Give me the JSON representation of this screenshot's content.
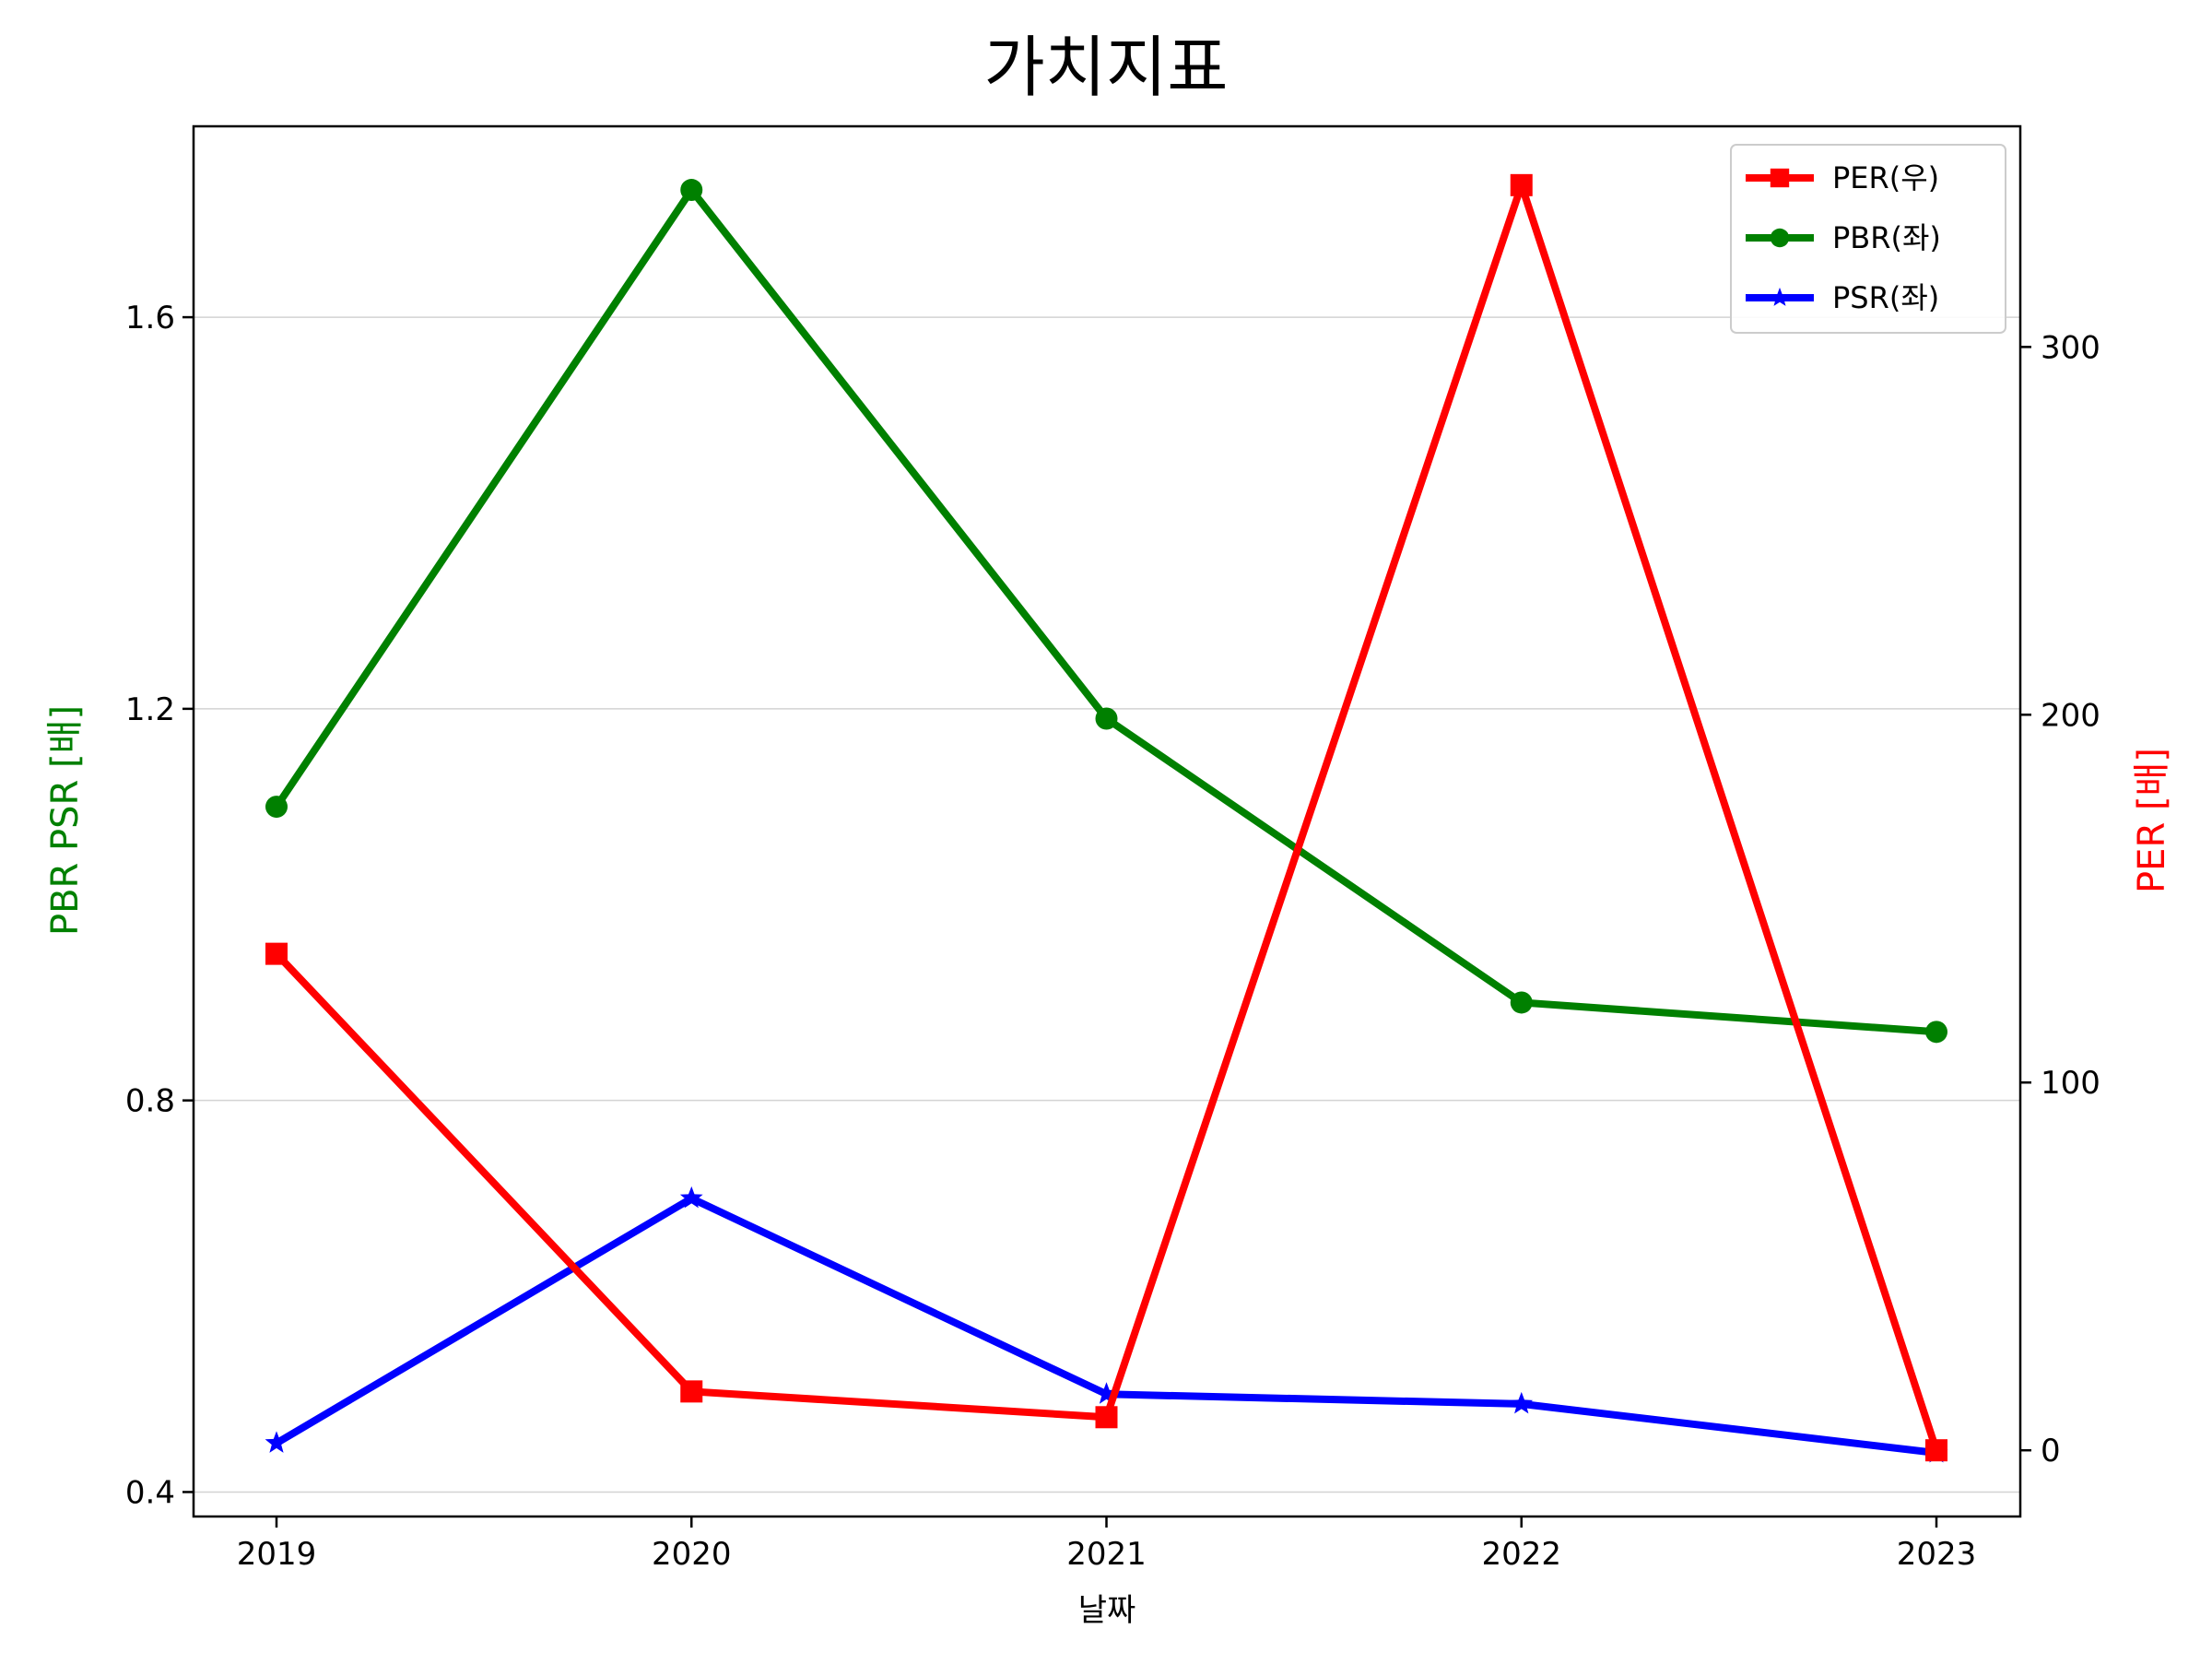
{
  "chart_data": {
    "type": "line",
    "title": "가치지표",
    "xlabel": "날짜",
    "ylabel_left": "PBR PSR [배]",
    "ylabel_right": "PER [배]",
    "categories": [
      "2019",
      "2020",
      "2021",
      "2022",
      "2023"
    ],
    "left_axis": {
      "ylim": [
        0.375,
        1.795
      ],
      "ticks": [
        0.4,
        0.8,
        1.2,
        1.6
      ],
      "tick_labels": [
        "0.4",
        "0.8",
        "1.2",
        "1.6"
      ]
    },
    "right_axis": {
      "ylim": [
        -18,
        360
      ],
      "ticks": [
        0,
        100,
        200,
        300
      ],
      "tick_labels": [
        "0",
        "100",
        "200",
        "300"
      ]
    },
    "grid": "horizontal-left",
    "legend_position": "top-right",
    "series": [
      {
        "name": "PER(우)",
        "axis": "right",
        "color": "#ff0000",
        "marker": "square",
        "values": [
          135,
          16,
          9,
          344,
          0
        ]
      },
      {
        "name": "PBR(좌)",
        "axis": "left",
        "color": "#008000",
        "marker": "circle",
        "values": [
          1.1,
          1.73,
          1.19,
          0.9,
          0.87
        ]
      },
      {
        "name": "PSR(좌)",
        "axis": "left",
        "color": "#0000ff",
        "marker": "star",
        "values": [
          0.45,
          0.7,
          0.5,
          0.49,
          0.44
        ]
      }
    ]
  }
}
